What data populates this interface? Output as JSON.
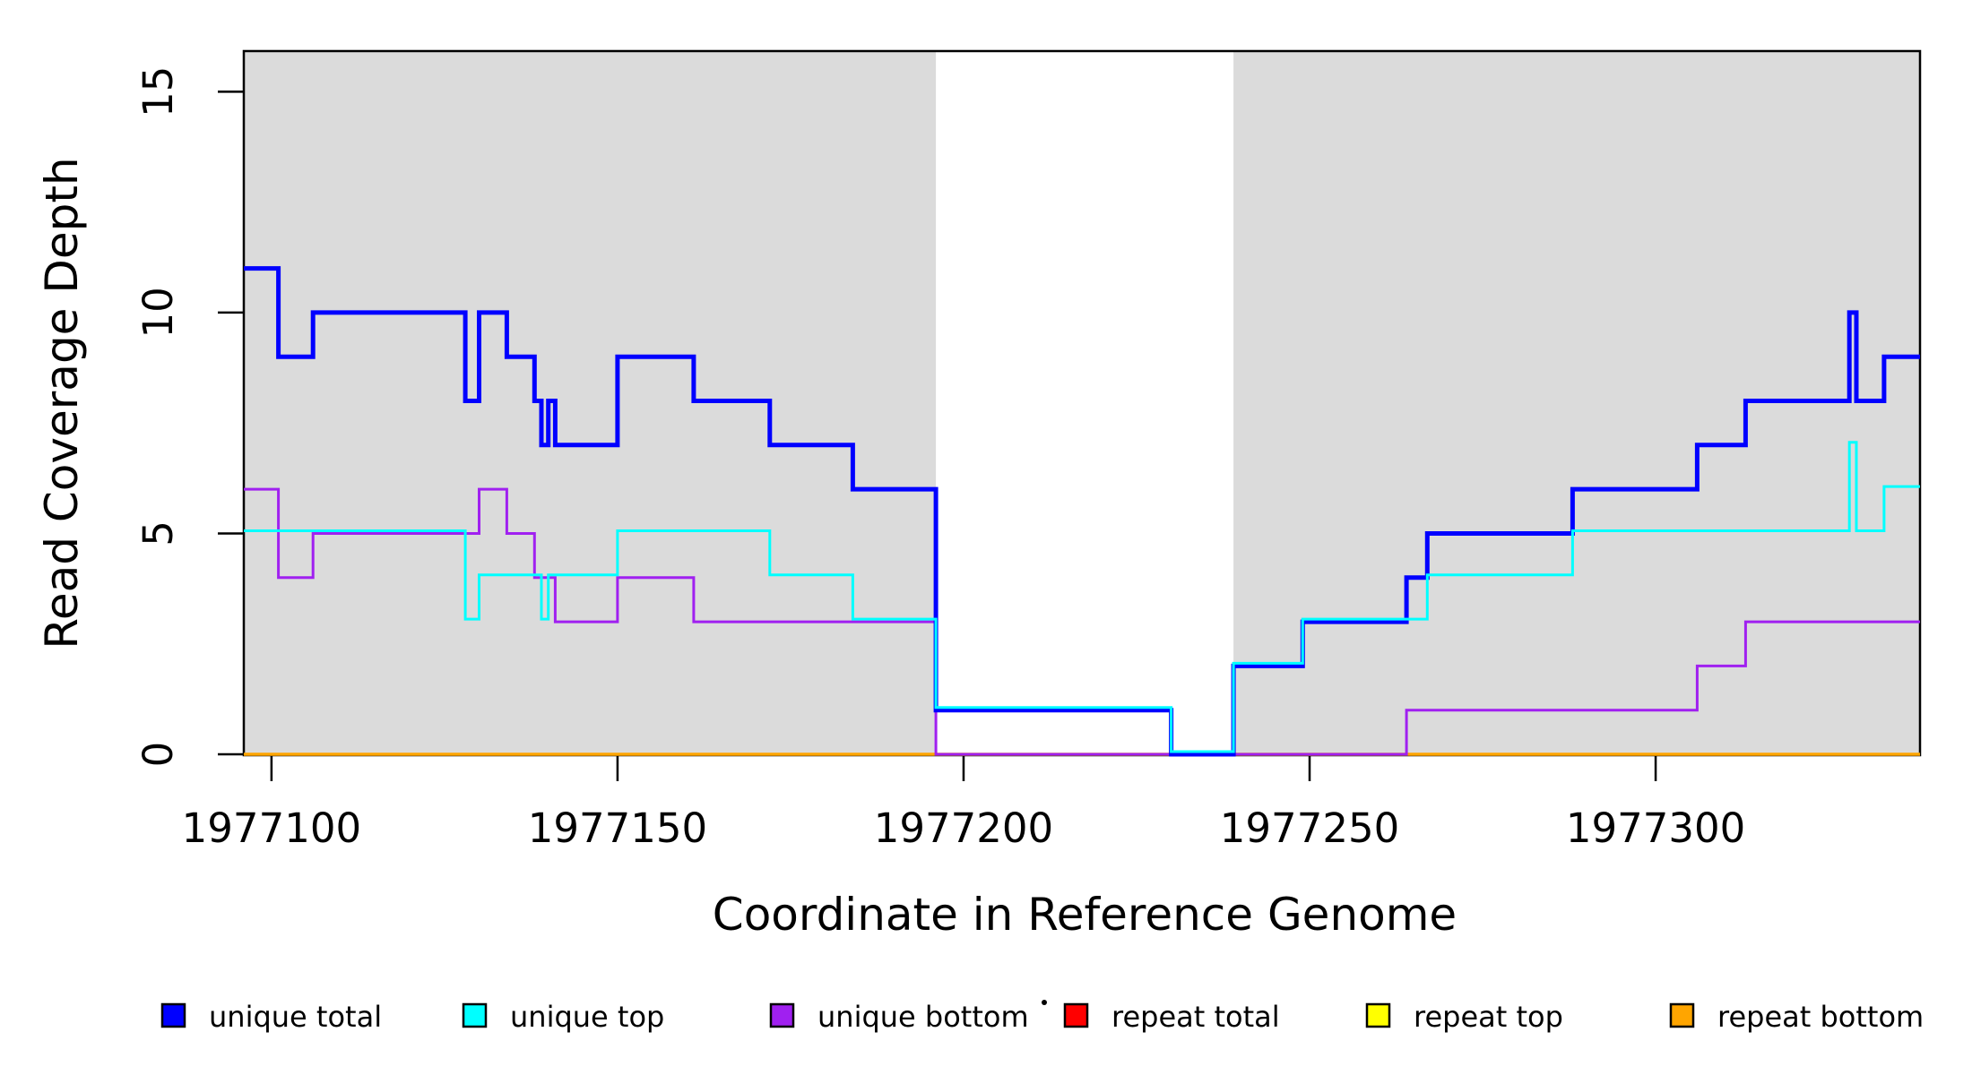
{
  "figure": {
    "kind": "read coverage step plot",
    "background": "#ffffff"
  },
  "chart_data": {
    "type": "line",
    "subtype": "step-after",
    "title": "",
    "xlabel": "Coordinate in Reference Genome",
    "ylabel": "Read Coverage Depth",
    "xlim": [
      1977096,
      1977338.2
    ],
    "ylim": [
      0,
      15.92
    ],
    "x_ticks": [
      1977100,
      1977150,
      1977200,
      1977250,
      1977300
    ],
    "x_tick_labels": [
      "1977100",
      "1977150",
      "1977200",
      "1977250",
      "1977300"
    ],
    "y_ticks": [
      0,
      5,
      10,
      15
    ],
    "y_tick_labels": [
      "0",
      "5",
      "10",
      "15"
    ],
    "grid": false,
    "panel_border_color": "#000000",
    "shaded_regions": {
      "color": "#dbdbdb",
      "regions": [
        {
          "from": 1977096,
          "to": 1977196
        },
        {
          "from": 1977239,
          "to": 1977338.2
        }
      ]
    },
    "series": [
      {
        "name": "repeat total",
        "color": "#ff0000",
        "width": 2.5,
        "steps": [
          [
            1977096,
            0
          ]
        ]
      },
      {
        "name": "repeat top",
        "color": "#ffff00",
        "width": 2.5,
        "steps": [
          [
            1977096,
            0
          ]
        ]
      },
      {
        "name": "repeat bottom",
        "color": "#ffa500",
        "width": 3.5,
        "steps": [
          [
            1977096,
            0
          ]
        ]
      },
      {
        "name": "unique bottom",
        "color": "#a020f0",
        "width": 3,
        "steps": [
          [
            1977096,
            6
          ],
          [
            1977101,
            4
          ],
          [
            1977106,
            5
          ],
          [
            1977130,
            6
          ],
          [
            1977134,
            5
          ],
          [
            1977138,
            4
          ],
          [
            1977141,
            3
          ],
          [
            1977150,
            4
          ],
          [
            1977161,
            3
          ],
          [
            1977196,
            0
          ],
          [
            1977264,
            1
          ],
          [
            1977306,
            2
          ],
          [
            1977313,
            3
          ]
        ]
      },
      {
        "name": "unique total",
        "color": "#0000ff",
        "width": 5,
        "steps": [
          [
            1977096,
            11
          ],
          [
            1977101,
            9
          ],
          [
            1977106,
            10
          ],
          [
            1977128,
            8
          ],
          [
            1977130,
            10
          ],
          [
            1977134,
            9
          ],
          [
            1977138,
            8
          ],
          [
            1977139,
            7
          ],
          [
            1977140,
            8
          ],
          [
            1977141,
            7
          ],
          [
            1977150,
            9
          ],
          [
            1977161,
            8
          ],
          [
            1977172,
            7
          ],
          [
            1977184,
            6
          ],
          [
            1977196,
            1
          ],
          [
            1977230,
            0
          ],
          [
            1977239,
            2
          ],
          [
            1977249,
            3
          ],
          [
            1977264,
            4
          ],
          [
            1977267,
            5
          ],
          [
            1977288,
            6
          ],
          [
            1977306,
            7
          ],
          [
            1977313,
            8
          ],
          [
            1977328,
            10
          ],
          [
            1977329,
            8
          ],
          [
            1977333,
            9
          ]
        ]
      },
      {
        "name": "unique top",
        "color": "#00ffff",
        "width": 3,
        "steps": [
          [
            1977096,
            5
          ],
          [
            1977128,
            3
          ],
          [
            1977130,
            4
          ],
          [
            1977139,
            3
          ],
          [
            1977140,
            4
          ],
          [
            1977150,
            5
          ],
          [
            1977172,
            4
          ],
          [
            1977184,
            3
          ],
          [
            1977196,
            1
          ],
          [
            1977230,
            0
          ],
          [
            1977239,
            2
          ],
          [
            1977249,
            3
          ],
          [
            1977267,
            4
          ],
          [
            1977288,
            5
          ],
          [
            1977328,
            7
          ],
          [
            1977329,
            5
          ],
          [
            1977333,
            6
          ]
        ]
      }
    ],
    "legend": {
      "position": "bottom",
      "items": [
        {
          "label": "unique total",
          "color": "#0000ff"
        },
        {
          "label": "unique top",
          "color": "#00ffff"
        },
        {
          "label": "unique bottom",
          "color": "#a020f0"
        },
        {
          "label": "repeat total",
          "color": "#ff0000"
        },
        {
          "label": "repeat top",
          "color": "#ffff00"
        },
        {
          "label": "repeat bottom",
          "color": "#ffa500"
        }
      ],
      "artifact_dot": true
    }
  }
}
